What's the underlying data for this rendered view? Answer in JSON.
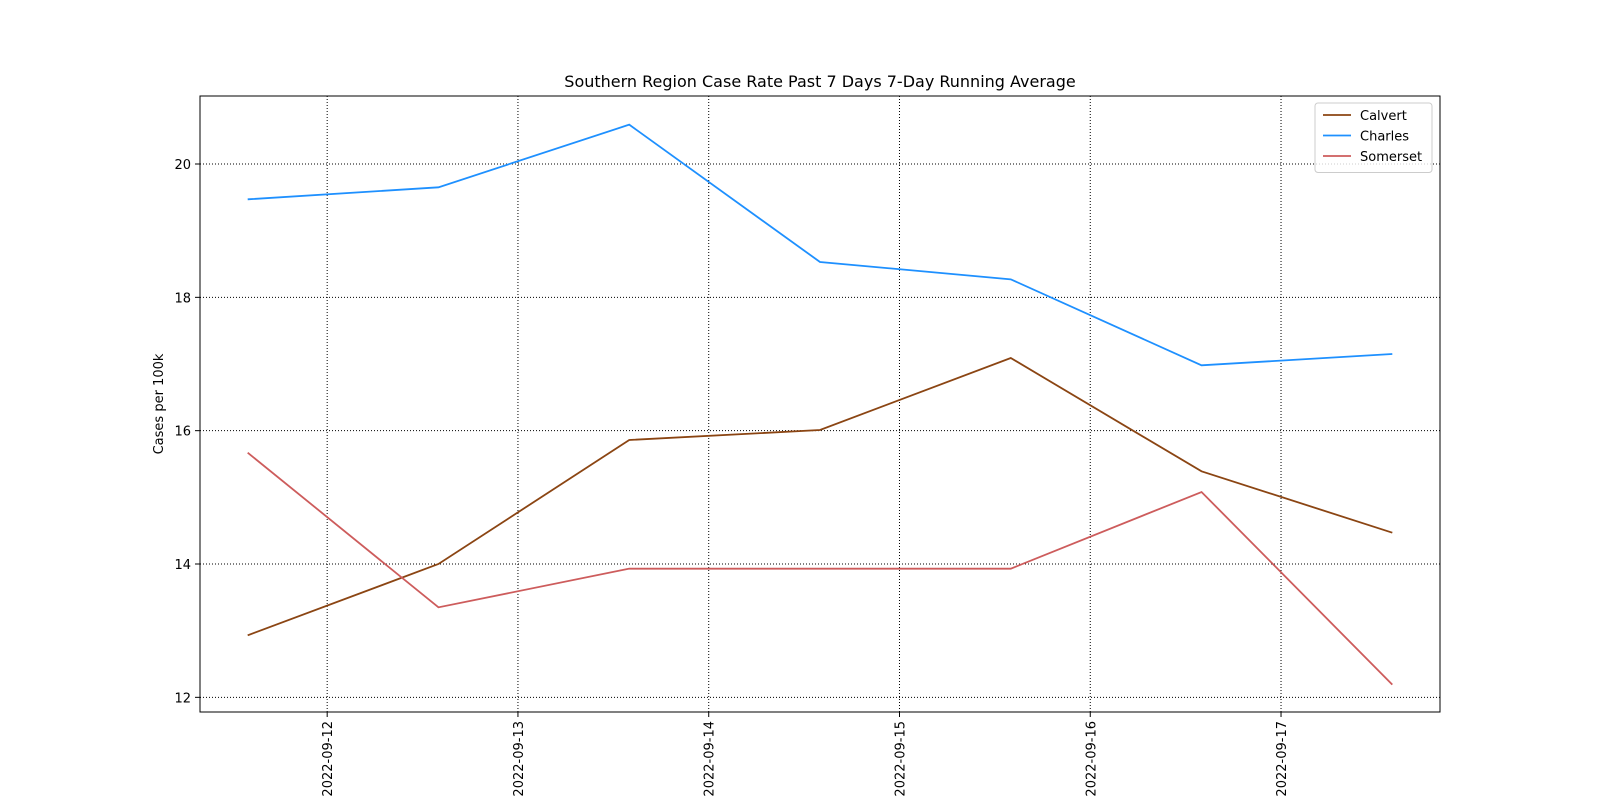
{
  "chart_data": {
    "type": "line",
    "title": "Southern Region Case Rate  Past 7 Days 7-Day Running Average",
    "xlabel": "",
    "ylabel": "Cases per 100k",
    "x": [
      "2022-09-11 14:00",
      "2022-09-12 14:00",
      "2022-09-13 14:00",
      "2022-09-14 14:00",
      "2022-09-15 14:00",
      "2022-09-16 14:00",
      "2022-09-17 14:00"
    ],
    "x_ticks": [
      "2022-09-12",
      "2022-09-13",
      "2022-09-14",
      "2022-09-15",
      "2022-09-16",
      "2022-09-17"
    ],
    "xlim": [
      "2022-09-11 08:00",
      "2022-09-17 20:00"
    ],
    "ylim": [
      11.78,
      21.02
    ],
    "y_ticks": [
      12,
      14,
      16,
      18,
      20
    ],
    "grid": true,
    "legend_position": "top-right",
    "series": [
      {
        "name": "Calvert",
        "color": "#8B4513",
        "values": [
          12.93,
          14.0,
          15.86,
          16.01,
          17.09,
          15.39,
          14.47
        ]
      },
      {
        "name": "Charles",
        "color": "#1E90FF",
        "values": [
          19.47,
          19.65,
          20.59,
          18.53,
          18.27,
          16.98,
          17.15
        ]
      },
      {
        "name": "Somerset",
        "color": "#CD5C5C",
        "values": [
          15.67,
          13.35,
          13.93,
          13.93,
          13.93,
          15.08,
          12.19
        ]
      }
    ]
  }
}
